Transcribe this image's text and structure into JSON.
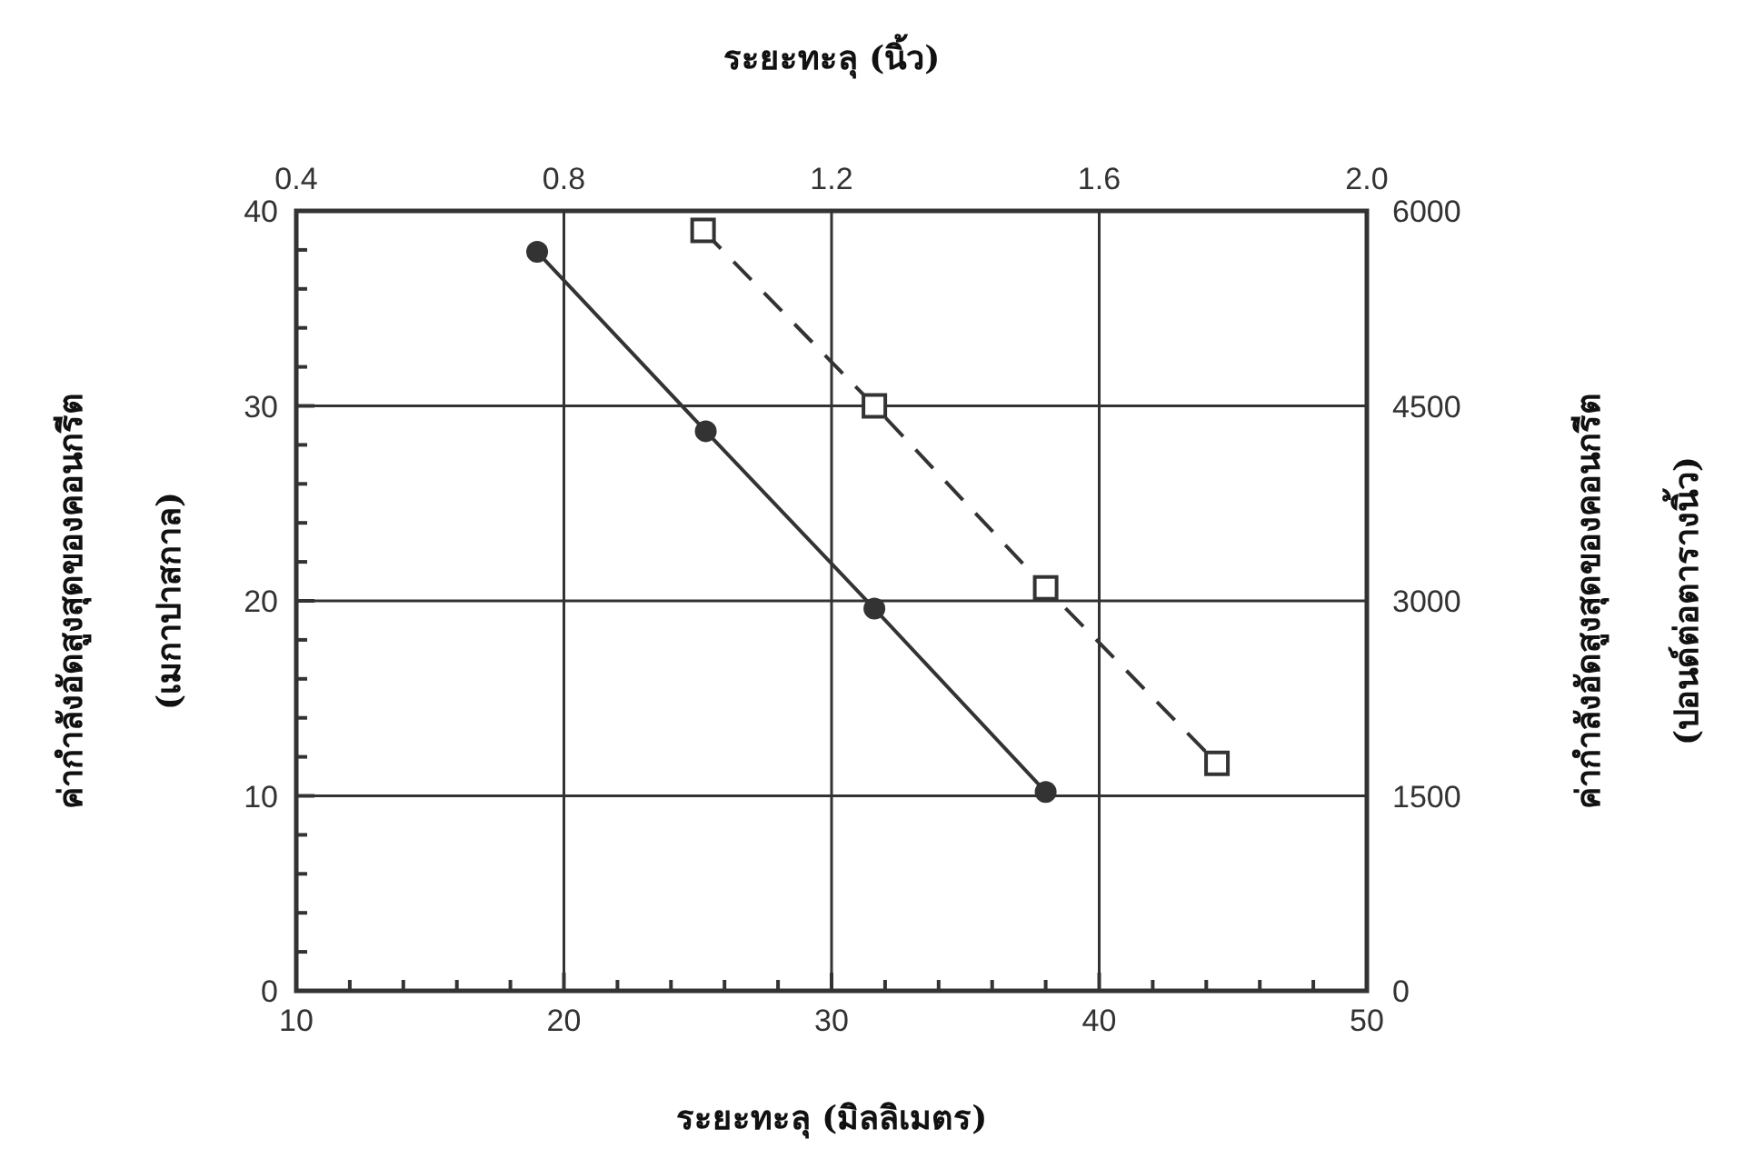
{
  "chart_data": {
    "type": "line",
    "xlabel": "ระยะทะลุ (มิลลิเมตร)",
    "x2label": "ระยะทะลุ (นิ้ว)",
    "ylabel": "ค่ากำลังอัดสูงสุดของคอนกรีต\n(เมกาปาสกาล)",
    "y2label": "ค่ากำลังอัดสูงสุดของคอนกรีต\n(ปอนด์ต่อตารางนิ้ว)",
    "xlim": [
      10,
      50
    ],
    "xticks": [
      10,
      {
        "value": 12,
        "label": null
      },
      {
        "value": 14,
        "label": null
      },
      {
        "value": 16,
        "label": null
      },
      {
        "value": 18,
        "label": null
      },
      20,
      {
        "value": 22,
        "label": null
      },
      {
        "value": 24,
        "label": null
      },
      {
        "value": 26,
        "label": null
      },
      {
        "value": 28,
        "label": null
      },
      30,
      {
        "value": 32,
        "label": null
      },
      {
        "value": 34,
        "label": null
      },
      {
        "value": 36,
        "label": null
      },
      {
        "value": 38,
        "label": null
      },
      40,
      {
        "value": 42,
        "label": null
      },
      {
        "value": 44,
        "label": null
      },
      {
        "value": 46,
        "label": null
      },
      {
        "value": 48,
        "label": null
      },
      50
    ],
    "x2lim": [
      0.4,
      2.0
    ],
    "x2ticks": [
      0.4,
      0.8,
      1.2,
      1.6,
      {
        "value": 2.0,
        "label": "2.0"
      }
    ],
    "ylim": [
      0,
      40
    ],
    "yticks": [
      0,
      {
        "value": 2,
        "label": null
      },
      {
        "value": 4,
        "label": null
      },
      {
        "value": 6,
        "label": null
      },
      {
        "value": 8,
        "label": null
      },
      10,
      {
        "value": 12,
        "label": null
      },
      {
        "value": 14,
        "label": null
      },
      {
        "value": 16,
        "label": null
      },
      {
        "value": 18,
        "label": null
      },
      20,
      {
        "value": 22,
        "label": null
      },
      {
        "value": 24,
        "label": null
      },
      {
        "value": 26,
        "label": null
      },
      {
        "value": 28,
        "label": null
      },
      30,
      {
        "value": 32,
        "label": null
      },
      {
        "value": 34,
        "label": null
      },
      {
        "value": 36,
        "label": null
      },
      {
        "value": 38,
        "label": null
      },
      40
    ],
    "y2lim": [
      0,
      6000
    ],
    "y2ticks": [
      0,
      1500,
      3000,
      4500,
      6000
    ],
    "grid": true,
    "series": [
      {
        "color": "#333333",
        "marker": "circle",
        "line_style": "solid",
        "x": [
          19.0,
          25.3,
          31.6,
          38.0
        ],
        "values": [
          37.9,
          28.7,
          19.6,
          10.2
        ]
      },
      {
        "color": "#333333",
        "marker": "square",
        "line_style": "dashed",
        "axis": "y2",
        "x": [
          25.2,
          31.6,
          38.0,
          44.4
        ],
        "values": [
          5850,
          4500,
          3100,
          1750
        ]
      }
    ]
  }
}
